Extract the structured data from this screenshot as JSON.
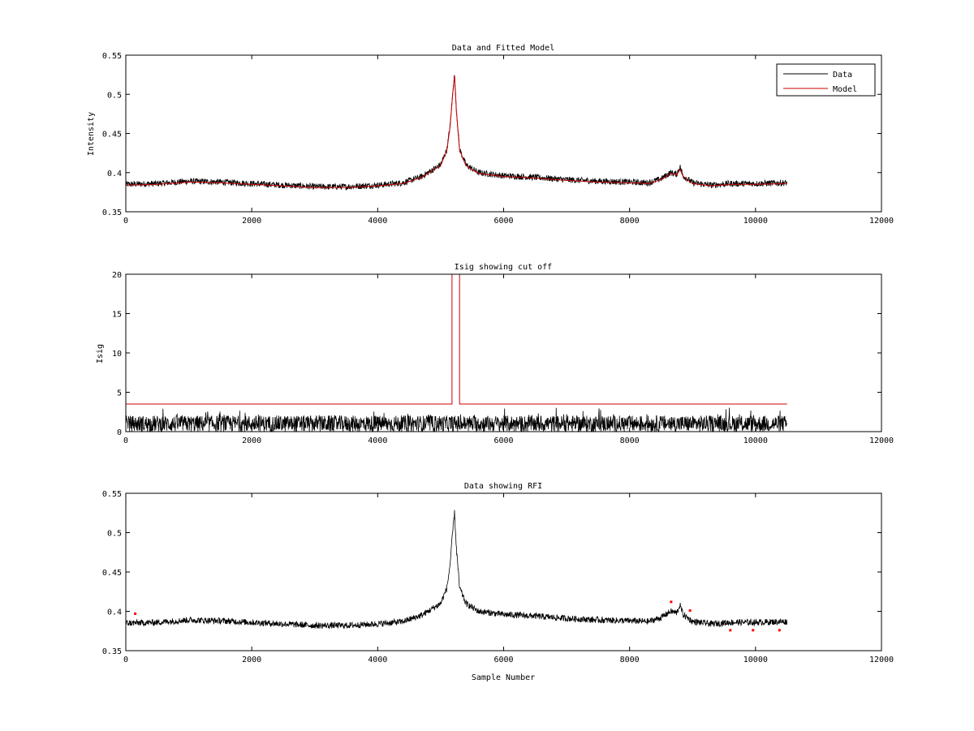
{
  "figure": {
    "background": "#ffffff"
  },
  "chart_data": [
    {
      "type": "line",
      "title": "Data and Fitted Model",
      "xlabel": "",
      "ylabel": "Intensity",
      "xlim": [
        0,
        12000
      ],
      "ylim": [
        0.35,
        0.55
      ],
      "xticks": [
        0,
        2000,
        4000,
        6000,
        8000,
        10000,
        12000
      ],
      "yticks": [
        0.35,
        0.4,
        0.45,
        0.5,
        0.55
      ],
      "ytick_labels": [
        "0.35",
        "0.4",
        "0.45",
        "0.5",
        "0.55"
      ],
      "legend": {
        "placement": "top-right",
        "entries": [
          "Data",
          "Model"
        ]
      },
      "grid": false,
      "series": [
        {
          "name": "Data",
          "color": "#000000",
          "noise": 0.004,
          "x": [
            0,
            500,
            1000,
            1500,
            2000,
            2500,
            3000,
            3500,
            4000,
            4400,
            4700,
            5000,
            5100,
            5150,
            5200,
            5220,
            5250,
            5300,
            5400,
            5600,
            6000,
            6500,
            7000,
            7500,
            8000,
            8300,
            8500,
            8650,
            8750,
            8800,
            8850,
            9000,
            9300,
            9600,
            10000,
            10500
          ],
          "values": [
            0.385,
            0.386,
            0.389,
            0.388,
            0.386,
            0.384,
            0.382,
            0.382,
            0.384,
            0.387,
            0.395,
            0.41,
            0.43,
            0.46,
            0.51,
            0.525,
            0.48,
            0.43,
            0.41,
            0.4,
            0.396,
            0.394,
            0.391,
            0.389,
            0.388,
            0.387,
            0.392,
            0.4,
            0.398,
            0.408,
            0.396,
            0.387,
            0.384,
            0.386,
            0.386,
            0.387
          ]
        },
        {
          "name": "Model",
          "color": "#cc0000",
          "noise": 0,
          "x": [
            0,
            500,
            1000,
            1500,
            2000,
            2500,
            3000,
            3500,
            4000,
            4400,
            4700,
            5000,
            5100,
            5150,
            5200,
            5220,
            5250,
            5300,
            5400,
            5600,
            6000,
            6500,
            7000,
            7500,
            8000,
            8300,
            8500,
            8650,
            8750,
            8800,
            8850,
            9000,
            9300,
            9600,
            10000,
            10500
          ],
          "values": [
            0.384,
            0.385,
            0.388,
            0.387,
            0.385,
            0.383,
            0.381,
            0.381,
            0.383,
            0.386,
            0.394,
            0.409,
            0.429,
            0.459,
            0.509,
            0.524,
            0.479,
            0.429,
            0.409,
            0.399,
            0.395,
            0.393,
            0.39,
            0.388,
            0.387,
            0.386,
            0.391,
            0.399,
            0.397,
            0.404,
            0.395,
            0.386,
            0.383,
            0.385,
            0.385,
            0.386
          ]
        }
      ]
    },
    {
      "type": "line",
      "title": "Isig showing cut off",
      "xlabel": "",
      "ylabel": "Isig",
      "xlim": [
        0,
        12000
      ],
      "ylim": [
        0,
        20
      ],
      "xticks": [
        0,
        2000,
        4000,
        6000,
        8000,
        10000,
        12000
      ],
      "yticks": [
        0,
        5,
        10,
        15,
        20
      ],
      "ytick_labels": [
        "0",
        "5",
        "10",
        "15",
        "20"
      ],
      "grid": false,
      "series": [
        {
          "color": "#000000",
          "noise": 1,
          "x": [
            0,
            10500
          ],
          "values": [
            1,
            1
          ]
        },
        {
          "color": "#cc0000",
          "noise": 0,
          "x": [
            0,
            5180,
            5180,
            5300,
            5300,
            10500
          ],
          "values": [
            3.5,
            3.5,
            20,
            20,
            3.5,
            3.5
          ]
        }
      ]
    },
    {
      "type": "line",
      "title": "Data showing RFI",
      "xlabel": "Sample Number",
      "ylabel": "",
      "xlim": [
        0,
        12000
      ],
      "ylim": [
        0.35,
        0.55
      ],
      "xticks": [
        0,
        2000,
        4000,
        6000,
        8000,
        10000,
        12000
      ],
      "yticks": [
        0.35,
        0.4,
        0.45,
        0.5,
        0.55
      ],
      "ytick_labels": [
        "0.35",
        "0.4",
        "0.45",
        "0.5",
        "0.55"
      ],
      "grid": false,
      "series": [
        {
          "color": "#000000",
          "noise": 0.004,
          "x": [
            0,
            500,
            1000,
            1500,
            2000,
            2500,
            3000,
            3500,
            4000,
            4400,
            4700,
            5000,
            5100,
            5150,
            5200,
            5220,
            5250,
            5300,
            5400,
            5600,
            6000,
            6500,
            7000,
            7500,
            8000,
            8300,
            8500,
            8650,
            8750,
            8800,
            8850,
            9000,
            9300,
            9600,
            10000,
            10500
          ],
          "values": [
            0.385,
            0.386,
            0.389,
            0.388,
            0.386,
            0.384,
            0.382,
            0.382,
            0.384,
            0.387,
            0.395,
            0.41,
            0.43,
            0.46,
            0.51,
            0.525,
            0.48,
            0.43,
            0.41,
            0.4,
            0.396,
            0.394,
            0.391,
            0.389,
            0.388,
            0.387,
            0.392,
            0.4,
            0.398,
            0.408,
            0.396,
            0.387,
            0.384,
            0.386,
            0.386,
            0.387
          ]
        }
      ],
      "rfi_points": {
        "color": "#ff0000",
        "points": [
          [
            150,
            0.397
          ],
          [
            8660,
            0.412
          ],
          [
            8960,
            0.401
          ],
          [
            9600,
            0.376
          ],
          [
            9960,
            0.376
          ],
          [
            10380,
            0.376
          ]
        ]
      }
    }
  ]
}
